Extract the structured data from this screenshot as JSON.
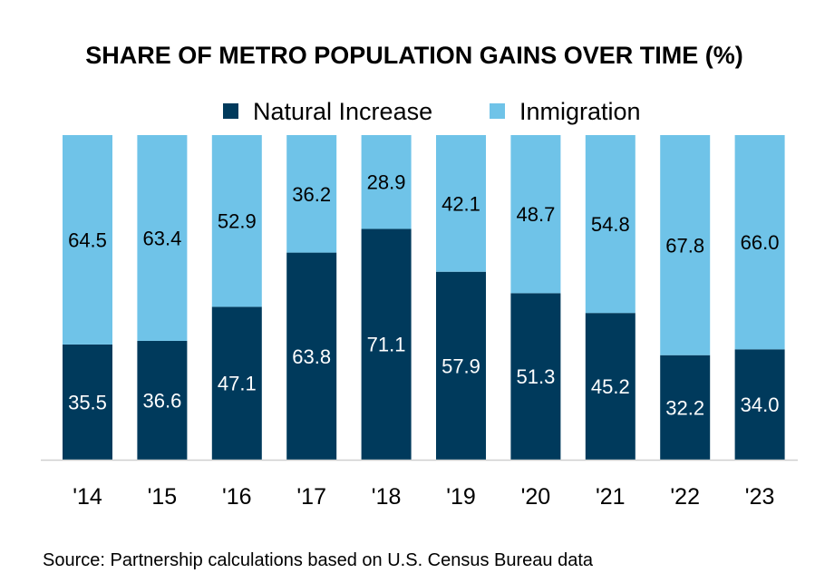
{
  "chart_data": {
    "type": "bar",
    "stacked": true,
    "title": "SHARE OF METRO POPULATION GAINS OVER TIME (%)",
    "categories": [
      "'14",
      "'15",
      "'16",
      "'17",
      "'18",
      "'19",
      "'20",
      "'21",
      "'22",
      "'23"
    ],
    "series": [
      {
        "name": "Natural Increase",
        "color": "#003a5c",
        "values": [
          35.5,
          36.6,
          47.1,
          63.8,
          71.1,
          57.9,
          51.3,
          45.2,
          32.2,
          34.0
        ]
      },
      {
        "name": "Inmigration",
        "color": "#6fc3e8",
        "values": [
          64.5,
          63.4,
          52.9,
          36.2,
          28.9,
          42.1,
          48.7,
          54.8,
          67.8,
          66.0
        ]
      }
    ],
    "ylim": [
      0,
      100
    ],
    "legend_position": "top",
    "grid": false,
    "source": "Source: Partnership calculations based on U.S. Census Bureau data"
  }
}
